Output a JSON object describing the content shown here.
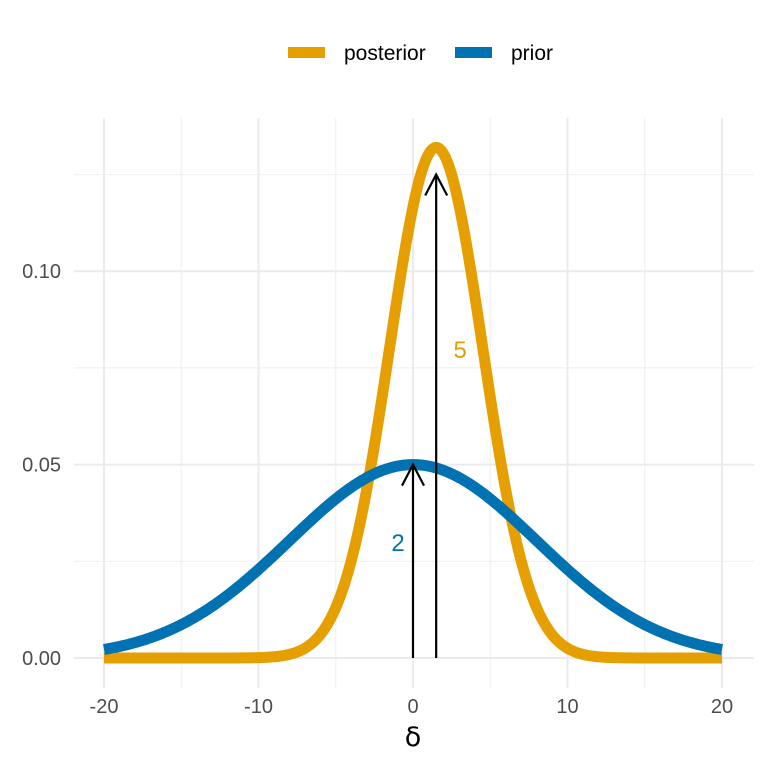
{
  "chart_data": {
    "type": "line",
    "xlabel": "δ",
    "ylabel": "",
    "xlim": [
      -20,
      20
    ],
    "ylim": [
      0,
      0.13
    ],
    "x_ticks": [
      -20,
      -10,
      0,
      10,
      20
    ],
    "x_tick_labels": [
      "-20",
      "-10",
      "0",
      "10",
      "20"
    ],
    "y_ticks": [
      0.0,
      0.05,
      0.1
    ],
    "y_tick_labels": [
      "0.00",
      "0.05",
      "0.10"
    ],
    "grid": true,
    "legend_position": "top",
    "series": [
      {
        "name": "posterior",
        "color": "#E69F00",
        "distribution": "normal",
        "mean": 1.5,
        "sd": 3.02,
        "peak": 0.132
      },
      {
        "name": "prior",
        "color": "#0072B2",
        "distribution": "normal",
        "mean": 0,
        "sd": 8,
        "peak": 0.05
      }
    ],
    "annotations": [
      {
        "label": "2",
        "x": 0,
        "y_top": 0.05,
        "color": "#0072B2"
      },
      {
        "label": "5",
        "x": 1.5,
        "y_top": 0.125,
        "color": "#E69F00"
      }
    ]
  }
}
